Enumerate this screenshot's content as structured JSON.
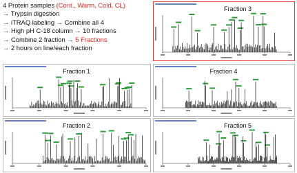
{
  "notes": {
    "heading": [
      {
        "text": "4 Protein samples "
      },
      {
        "text": "(Cont., Warm, Cold, CL)",
        "color": "#e8261e"
      }
    ],
    "steps": [
      [
        {
          "text": "→ Trypsin digestion"
        }
      ],
      [
        {
          "text": "→ iTRAQ labeling → Combine all 4"
        }
      ],
      [
        {
          "text": "→ High pH C-18 column → 10 fractions"
        }
      ],
      [
        {
          "text": "→ Combine 2 fraction → "
        },
        {
          "text": "5 Fractions",
          "color": "#e8261e"
        }
      ],
      [
        {
          "text": "→ 2 hours on line/each fraction"
        }
      ]
    ]
  },
  "panels": [
    {
      "title": "Fraction 3",
      "border_color": "#e04040"
    },
    {
      "title": "Fraction 1",
      "border_color": "#b8b8b8"
    },
    {
      "title": "Fraction 4",
      "border_color": "#b8b8b8"
    },
    {
      "title": "Fraction 2",
      "border_color": "#b8b8b8"
    },
    {
      "title": "Fraction 5",
      "border_color": "#b8b8b8"
    }
  ]
}
